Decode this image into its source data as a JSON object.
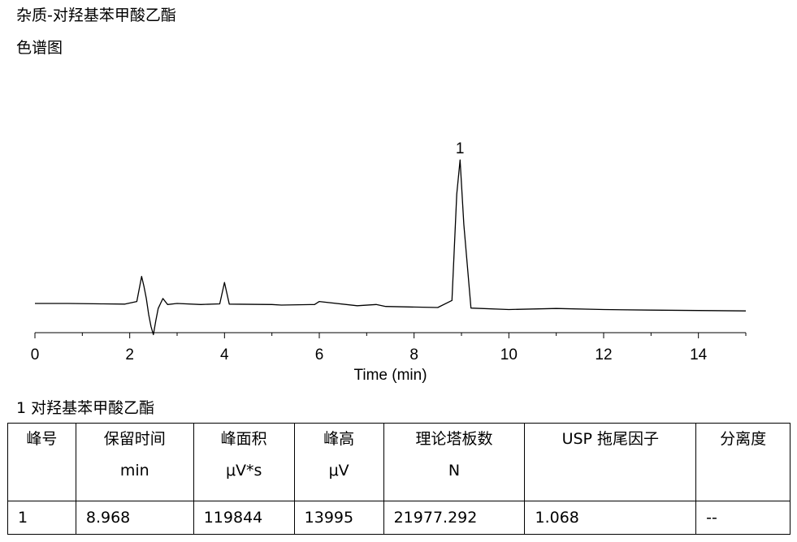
{
  "header": {
    "title": "杂质-对羟基苯甲酸乙酯",
    "subtitle": "色谱图"
  },
  "chart_data": {
    "type": "line",
    "title": "",
    "xlabel": "Time (min)",
    "ylabel": "",
    "xlim": [
      0,
      15
    ],
    "ylim": [
      -10,
      100
    ],
    "xticks": [
      0,
      2,
      4,
      6,
      8,
      10,
      12,
      14
    ],
    "xtick_labels": [
      "0",
      "2",
      "4",
      "6",
      "8",
      "10",
      "12",
      "14"
    ],
    "grid": false,
    "legend": "none",
    "series": [
      {
        "x": [
          0,
          0.7,
          1.4,
          1.9,
          2.15,
          2.25,
          2.3,
          2.35,
          2.4,
          2.45,
          2.5,
          2.55,
          2.6,
          2.7,
          2.8,
          3.0,
          3.5,
          3.9,
          4.0,
          4.1,
          5.0,
          5.2,
          5.9,
          6.0,
          6.8,
          7.2,
          7.4,
          7.8,
          8.5,
          8.8,
          8.9,
          8.97,
          9.05,
          9.2,
          10.0,
          11.0,
          12.0,
          13.0,
          14.0,
          15.0
        ],
        "y": [
          0.5,
          0.5,
          0.3,
          0.2,
          1.5,
          14,
          9,
          3,
          -5,
          -11,
          -15,
          -8,
          -2,
          3,
          0,
          0.5,
          0,
          0.3,
          11,
          0.2,
          0,
          -0.3,
          0,
          1.5,
          -0.6,
          0,
          -1,
          -1.2,
          -1.5,
          2,
          55,
          72,
          40,
          -1.8,
          -2.5,
          -2,
          -2.5,
          -2.8,
          -3,
          -3.2
        ]
      }
    ],
    "annotations": [
      {
        "text": "1",
        "x": 8.968,
        "y": 72
      }
    ]
  },
  "results": {
    "caption": "1 对羟基苯甲酸乙酯",
    "columns": [
      {
        "label": "峰号",
        "unit": ""
      },
      {
        "label": "保留时间",
        "unit": "min"
      },
      {
        "label": "峰面积",
        "unit": "μV*s"
      },
      {
        "label": "峰高",
        "unit": "μV"
      },
      {
        "label": "理论塔板数",
        "unit": "N"
      },
      {
        "label": "USP 拖尾因子",
        "unit": ""
      },
      {
        "label": "分离度",
        "unit": ""
      }
    ],
    "rows": [
      [
        "1",
        "8.968",
        "119844",
        "13995",
        "21977.292",
        "1.068",
        "--"
      ]
    ]
  }
}
